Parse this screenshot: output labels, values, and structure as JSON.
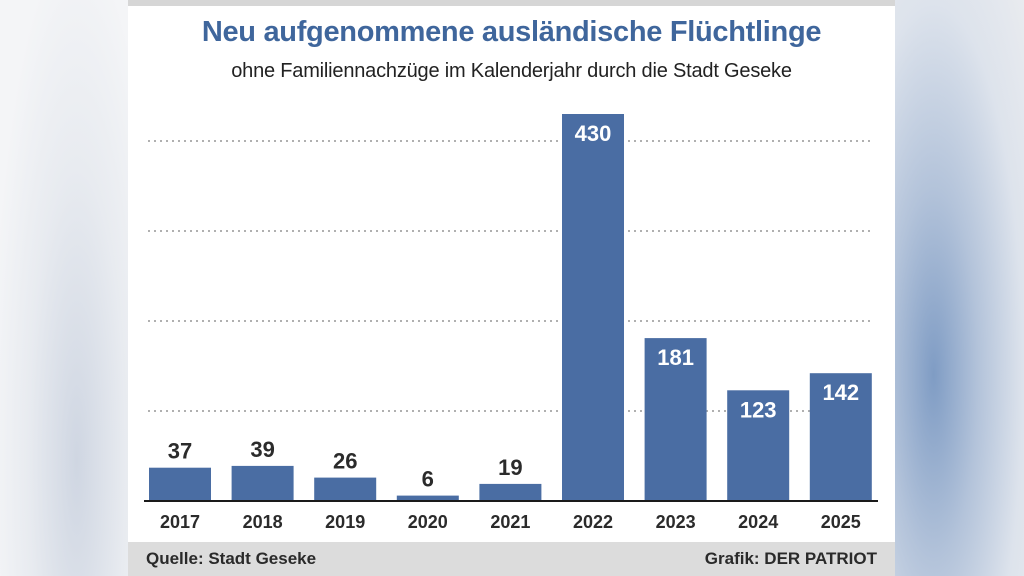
{
  "colors": {
    "bar": "#4a6da3",
    "title": "#3f669c",
    "grid": "#b0b0b0",
    "axis": "#1a1a1a",
    "footer_bg": "#dcdcdc"
  },
  "footer": {
    "source": "Quelle: Stadt Geseke",
    "credit": "Grafik: DER PATRIOT"
  },
  "chart_data": {
    "type": "bar",
    "title": "Neu aufgenommene ausländische Flüchtlinge",
    "subtitle": "ohne Familiennachzüge im Kalenderjahr durch die Stadt Geseke",
    "xlabel": "",
    "ylabel": "",
    "categories": [
      "2017",
      "2018",
      "2019",
      "2020",
      "2021",
      "2022",
      "2023",
      "2024",
      "2025"
    ],
    "values": [
      37,
      39,
      26,
      6,
      19,
      430,
      181,
      123,
      142
    ],
    "value_labels": [
      "37",
      "39",
      "26",
      "6",
      "19",
      "430",
      "181",
      "123",
      "142"
    ],
    "ylim": [
      0,
      430
    ],
    "gridlines": [
      100,
      200,
      300,
      400
    ],
    "grid": true,
    "grid_style": "dotted",
    "labels_inside_threshold": 100
  }
}
